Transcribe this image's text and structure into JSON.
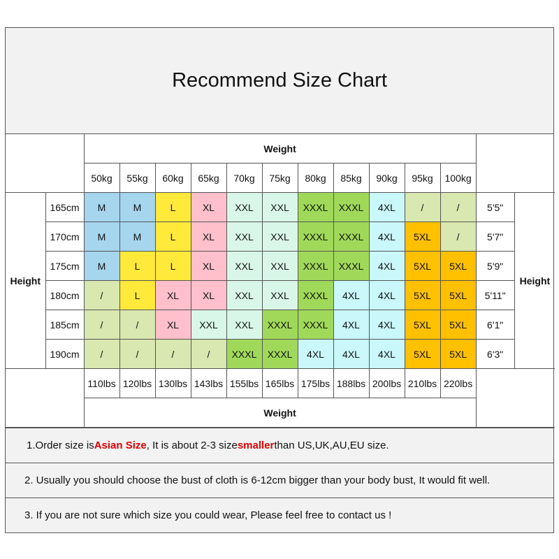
{
  "title": "Recommend Size Chart",
  "weight_label": "Weight",
  "height_label": "Height",
  "kg": [
    "50kg",
    "55kg",
    "60kg",
    "65kg",
    "70kg",
    "75kg",
    "80kg",
    "85kg",
    "90kg",
    "95kg",
    "100kg"
  ],
  "lbs": [
    "110lbs",
    "120lbs",
    "130lbs",
    "143lbs",
    "155lbs",
    "165lbs",
    "175lbs",
    "188lbs",
    "200lbs",
    "210lbs",
    "220lbs"
  ],
  "rows": [
    {
      "cm": "165cm",
      "ft": "5'5\"",
      "sizes": [
        "M",
        "M",
        "L",
        "XL",
        "XXL",
        "XXL",
        "XXXL",
        "XXXL",
        "4XL",
        "/",
        "/"
      ]
    },
    {
      "cm": "170cm",
      "ft": "5'7\"",
      "sizes": [
        "M",
        "M",
        "L",
        "XL",
        "XXL",
        "XXL",
        "XXXL",
        "XXXL",
        "4XL",
        "5XL",
        "/"
      ]
    },
    {
      "cm": "175cm",
      "ft": "5'9\"",
      "sizes": [
        "M",
        "L",
        "L",
        "XL",
        "XXL",
        "XXL",
        "XXXL",
        "XXXL",
        "4XL",
        "5XL",
        "5XL"
      ]
    },
    {
      "cm": "180cm",
      "ft": "5'11\"",
      "sizes": [
        "/",
        "L",
        "XL",
        "XL",
        "XXL",
        "XXL",
        "XXXL",
        "4XL",
        "4XL",
        "5XL",
        "5XL"
      ]
    },
    {
      "cm": "185cm",
      "ft": "6'1\"",
      "sizes": [
        "/",
        "/",
        "XL",
        "XXL",
        "XXL",
        "XXXL",
        "XXXL",
        "4XL",
        "4XL",
        "5XL",
        "5XL"
      ]
    },
    {
      "cm": "190cm",
      "ft": "6'3\"",
      "sizes": [
        "/",
        "/",
        "/",
        "/",
        "XXXL",
        "XXXL",
        "4XL",
        "4XL",
        "4XL",
        "5XL",
        "5XL"
      ]
    }
  ],
  "size_colors": {
    "M": "#a6d5ee",
    "L": "#ffe93a",
    "XL": "#ffc0cb",
    "XXL": "#d9f7e8",
    "XXXL": "#a0d95a",
    "4XL": "#c9f7fa",
    "5XL": "#ffc000",
    "/": "#d9e7b0"
  },
  "notes": {
    "n1_a": "1.Order size is ",
    "n1_b": "Asian Size",
    "n1_c": ", It is about 2-3 size ",
    "n1_d": "smaller",
    "n1_e": " than US,UK,AU,EU size.",
    "n2": "2. Usually you should choose the bust of cloth is 6-12cm bigger than your body bust, It would fit well.",
    "n3": "3. If you are not sure which size you could wear, Please feel free to contact us !"
  }
}
